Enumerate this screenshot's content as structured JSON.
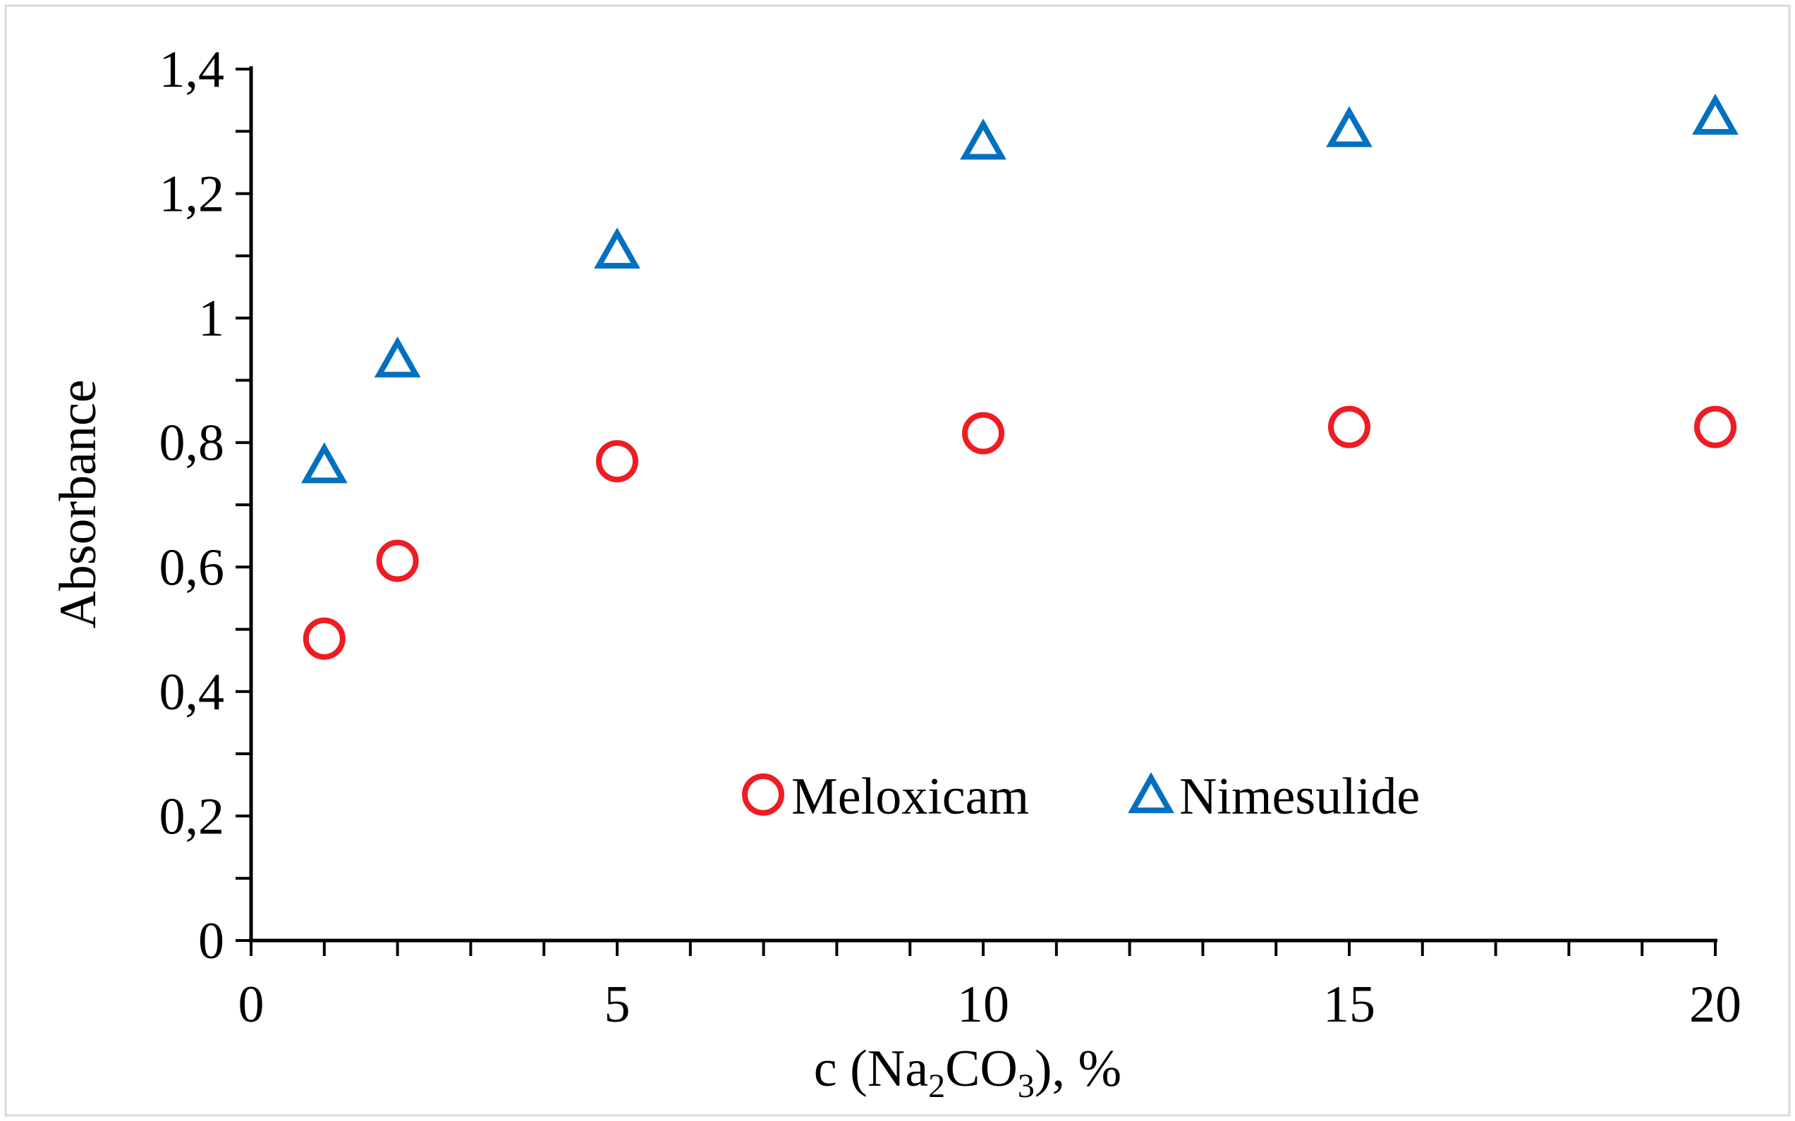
{
  "chart_data": {
    "type": "scatter",
    "title": "",
    "xlabel": {
      "prefix": "c (Na",
      "sub1": "2",
      "mid": "CO",
      "sub2": "3",
      "suffix": "),  %"
    },
    "ylabel": "Absorbance",
    "xlim": [
      0,
      20
    ],
    "ylim": [
      0,
      1.4
    ],
    "grid": false,
    "legend_position": "bottom-center",
    "x_ticks": [
      {
        "value": 0,
        "label": "0"
      },
      {
        "value": 5,
        "label": "5"
      },
      {
        "value": 10,
        "label": "10"
      },
      {
        "value": 15,
        "label": "15"
      },
      {
        "value": 20,
        "label": "20"
      }
    ],
    "y_ticks": [
      {
        "value": 0,
        "label": "0"
      },
      {
        "value": 0.2,
        "label": "0,2"
      },
      {
        "value": 0.4,
        "label": "0,4"
      },
      {
        "value": 0.6,
        "label": "0,6"
      },
      {
        "value": 0.8,
        "label": "0,8"
      },
      {
        "value": 1.0,
        "label": "1"
      },
      {
        "value": 1.2,
        "label": "1,2"
      },
      {
        "value": 1.4,
        "label": "1,4"
      }
    ],
    "series": [
      {
        "name": "Meloxicam",
        "marker": "circle",
        "color": "#ee1c23",
        "x": [
          1,
          2,
          5,
          10,
          15,
          20
        ],
        "y": [
          0.485,
          0.61,
          0.77,
          0.815,
          0.825,
          0.825
        ]
      },
      {
        "name": "Nimesulide",
        "marker": "triangle",
        "color": "#0070c0",
        "x": [
          1,
          2,
          5,
          10,
          15,
          20
        ],
        "y": [
          0.76,
          0.93,
          1.105,
          1.28,
          1.3,
          1.32
        ]
      }
    ]
  }
}
